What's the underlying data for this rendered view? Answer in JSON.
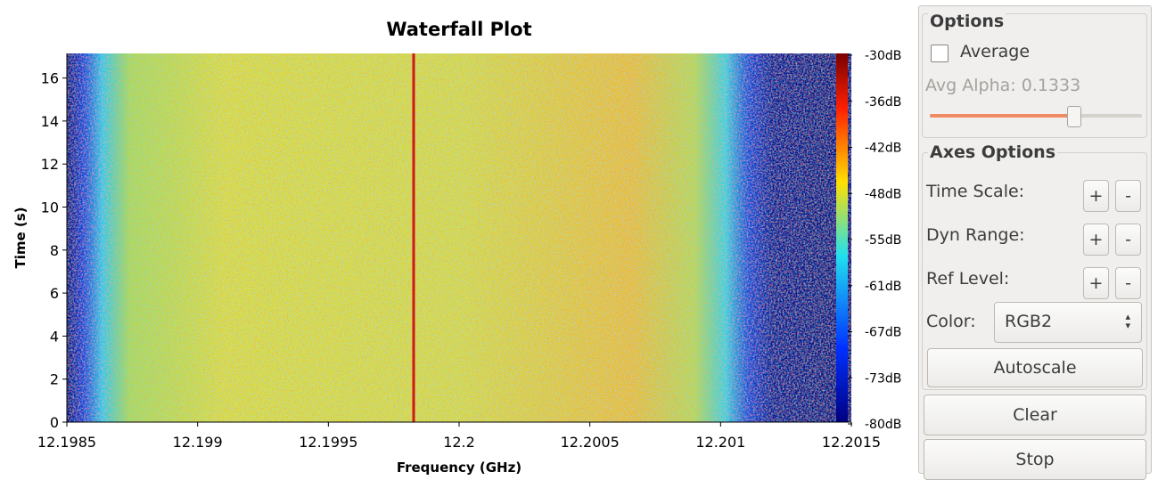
{
  "plot": {
    "title": "Waterfall Plot",
    "xlabel": "Frequency (GHz)",
    "ylabel": "Time (s)",
    "xticks": [
      "12.1985",
      "12.199",
      "12.1995",
      "12.2",
      "12.2005",
      "12.201",
      "12.2015"
    ],
    "yticks": [
      "0",
      "2",
      "4",
      "6",
      "8",
      "10",
      "12",
      "14",
      "16"
    ],
    "colorbar_ticks": [
      "-30dB",
      "-36dB",
      "-42dB",
      "-48dB",
      "-55dB",
      "-61dB",
      "-67dB",
      "-73dB",
      "-80dB"
    ]
  },
  "panel": {
    "options_title": "Options",
    "average": "Average",
    "avg_alpha": "Avg Alpha: 0.1333",
    "axes_title": "Axes Options",
    "rows": [
      {
        "label": "Time Scale:",
        "plus": "+",
        "minus": "-"
      },
      {
        "label": "Dyn Range:",
        "plus": "+",
        "minus": "-"
      },
      {
        "label": "Ref Level:",
        "plus": "+",
        "minus": "-"
      }
    ],
    "color_label": "Color:",
    "color_value": "RGB2",
    "autoscale": "Autoscale",
    "clear": "Clear",
    "stop": "Stop"
  }
}
